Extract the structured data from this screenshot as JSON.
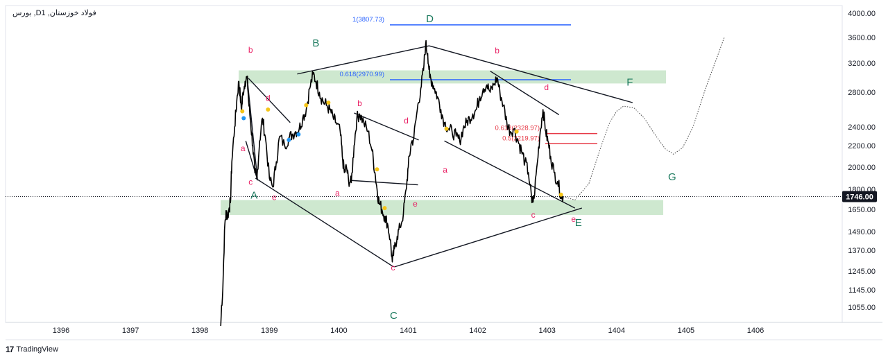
{
  "symbol": {
    "title": "بورس ,Dفولاد خوزستان, 1"
  },
  "brand": {
    "logo": "17",
    "name": "TradingView"
  },
  "price_tag": {
    "value": "1746.00"
  },
  "chart_data": {
    "type": "line",
    "series": [
      {
        "values": [
          [
            1398.3,
            1000
          ],
          [
            1398.33,
            1150
          ],
          [
            1398.36,
            1550
          ],
          [
            1398.38,
            1630
          ],
          [
            1398.4,
            1600
          ],
          [
            1398.42,
            1660
          ],
          [
            1398.44,
            1700
          ],
          [
            1398.46,
            2050
          ],
          [
            1398.5,
            2400
          ],
          [
            1398.53,
            2700
          ],
          [
            1398.56,
            2950
          ],
          [
            1398.58,
            2750
          ],
          [
            1398.6,
            2600
          ],
          [
            1398.62,
            2800
          ],
          [
            1398.65,
            2950
          ],
          [
            1398.68,
            3000
          ],
          [
            1398.7,
            2700
          ],
          [
            1398.73,
            2450
          ],
          [
            1398.76,
            2200
          ],
          [
            1398.79,
            1950
          ],
          [
            1398.82,
            1900
          ],
          [
            1398.86,
            2250
          ],
          [
            1398.9,
            2500
          ],
          [
            1398.94,
            2300
          ],
          [
            1399.0,
            1900
          ],
          [
            1399.05,
            1820
          ],
          [
            1399.1,
            2050
          ],
          [
            1399.15,
            2300
          ],
          [
            1399.22,
            2200
          ],
          [
            1399.28,
            2280
          ],
          [
            1399.33,
            2320
          ],
          [
            1399.38,
            2350
          ],
          [
            1399.43,
            2380
          ],
          [
            1399.48,
            2500
          ],
          [
            1399.53,
            2600
          ],
          [
            1399.58,
            2850
          ],
          [
            1399.63,
            3050
          ],
          [
            1399.67,
            2950
          ],
          [
            1399.72,
            2800
          ],
          [
            1399.77,
            2700
          ],
          [
            1399.82,
            2650
          ],
          [
            1399.87,
            2600
          ],
          [
            1399.92,
            2500
          ],
          [
            1399.96,
            2450
          ],
          [
            1400.02,
            2350
          ],
          [
            1400.05,
            2100
          ],
          [
            1400.08,
            1950
          ],
          [
            1400.11,
            2000
          ],
          [
            1400.14,
            1880
          ],
          [
            1400.18,
            1860
          ],
          [
            1400.22,
            2200
          ],
          [
            1400.26,
            2500
          ],
          [
            1400.3,
            2550
          ],
          [
            1400.36,
            2450
          ],
          [
            1400.42,
            2350
          ],
          [
            1400.48,
            2150
          ],
          [
            1400.52,
            1950
          ],
          [
            1400.55,
            1800
          ],
          [
            1400.58,
            1700
          ],
          [
            1400.62,
            1650
          ],
          [
            1400.66,
            1600
          ],
          [
            1400.7,
            1550
          ],
          [
            1400.74,
            1440
          ],
          [
            1400.77,
            1300
          ],
          [
            1400.8,
            1380
          ],
          [
            1400.84,
            1460
          ],
          [
            1400.88,
            1520
          ],
          [
            1400.93,
            1620
          ],
          [
            1400.97,
            1800
          ],
          [
            1401.0,
            2000
          ],
          [
            1401.04,
            2220
          ],
          [
            1401.08,
            2280
          ],
          [
            1401.13,
            2600
          ],
          [
            1401.18,
            2850
          ],
          [
            1401.22,
            3100
          ],
          [
            1401.25,
            3500
          ],
          [
            1401.28,
            3350
          ],
          [
            1401.31,
            3000
          ],
          [
            1401.34,
            2950
          ],
          [
            1401.38,
            2850
          ],
          [
            1401.42,
            2750
          ],
          [
            1401.47,
            2600
          ],
          [
            1401.52,
            2450
          ],
          [
            1401.58,
            2380
          ],
          [
            1401.63,
            2350
          ],
          [
            1401.69,
            2300
          ],
          [
            1401.74,
            2250
          ],
          [
            1401.79,
            2380
          ],
          [
            1401.84,
            2450
          ],
          [
            1401.88,
            2500
          ],
          [
            1401.93,
            2550
          ],
          [
            1401.98,
            2600
          ],
          [
            1402.03,
            2750
          ],
          [
            1402.08,
            2850
          ],
          [
            1402.13,
            2900
          ],
          [
            1402.18,
            2800
          ],
          [
            1402.23,
            2900
          ],
          [
            1402.28,
            3000
          ],
          [
            1402.32,
            2800
          ],
          [
            1402.37,
            2650
          ],
          [
            1402.42,
            2450
          ],
          [
            1402.47,
            2350
          ],
          [
            1402.52,
            2380
          ],
          [
            1402.58,
            2250
          ],
          [
            1402.63,
            2150
          ],
          [
            1402.68,
            2050
          ],
          [
            1402.73,
            1950
          ],
          [
            1402.78,
            1700
          ],
          [
            1402.81,
            1730
          ],
          [
            1402.86,
            2050
          ],
          [
            1402.9,
            2350
          ],
          [
            1402.94,
            2600
          ],
          [
            1402.98,
            2350
          ],
          [
            1403.01,
            2250
          ],
          [
            1403.05,
            2100
          ],
          [
            1403.1,
            1950
          ],
          [
            1403.15,
            1870
          ],
          [
            1403.2,
            1760
          ],
          [
            1403.23,
            1746
          ]
        ]
      }
    ],
    "projection": [
      [
        1403.23,
        1746
      ],
      [
        1403.4,
        1720
      ],
      [
        1403.6,
        1850
      ],
      [
        1403.78,
        2200
      ],
      [
        1403.9,
        2450
      ],
      [
        1404.0,
        2580
      ],
      [
        1404.1,
        2640
      ],
      [
        1404.25,
        2620
      ],
      [
        1404.4,
        2500
      ],
      [
        1404.55,
        2320
      ],
      [
        1404.7,
        2170
      ],
      [
        1404.82,
        2120
      ],
      [
        1404.95,
        2180
      ],
      [
        1405.1,
        2400
      ],
      [
        1405.28,
        2850
      ],
      [
        1405.45,
        3300
      ],
      [
        1405.55,
        3600
      ]
    ],
    "xticks": [
      "1396",
      "1397",
      "1398",
      "1399",
      "1400",
      "1401",
      "1402",
      "1403",
      "1404",
      "1405",
      "1406"
    ],
    "yticks": [
      "4000.00",
      "3600.00",
      "3200.00",
      "2800.00",
      "2400.00",
      "2200.00",
      "2000.00",
      "1800.00",
      "1650.00",
      "1490.00",
      "1370.00",
      "1245.00",
      "1145.00",
      "1055.00"
    ],
    "fib_levels": [
      {
        "label": "1(3807.73)",
        "value": 3807.73,
        "color": "#2962ff"
      },
      {
        "label": "0.618(2970.99)",
        "value": 2970.99,
        "color": "#2962ff"
      },
      {
        "label": "0.618(2328.97)",
        "value": 2328.97,
        "color": "#e63946"
      },
      {
        "label": "0.5(2219.97)",
        "value": 2219.97,
        "color": "#e63946"
      }
    ],
    "zones": [
      {
        "from": 2920,
        "to": 3100,
        "color": "#a5d6a7"
      },
      {
        "from": 1610,
        "to": 1720,
        "color": "#a5d6a7"
      }
    ],
    "wave_labels": [
      {
        "t": "A",
        "x": 1398.78,
        "y": 1730,
        "c": "#1b7a5e"
      },
      {
        "t": "B",
        "x": 1399.67,
        "y": 3460,
        "c": "#1b7a5e"
      },
      {
        "t": "C",
        "x": 1400.79,
        "y": 1020,
        "c": "#1b7a5e"
      },
      {
        "t": "D",
        "x": 1401.31,
        "y": 3850,
        "c": "#1b7a5e"
      },
      {
        "t": "E",
        "x": 1403.45,
        "y": 1530,
        "c": "#1b7a5e"
      },
      {
        "t": "F",
        "x": 1404.19,
        "y": 2890,
        "c": "#1b7a5e"
      },
      {
        "t": "G",
        "x": 1404.8,
        "y": 1880,
        "c": "#1b7a5e"
      },
      {
        "t": "b",
        "x": 1398.73,
        "y": 3360,
        "c": "#e91e63"
      },
      {
        "t": "d",
        "x": 1398.98,
        "y": 2700,
        "c": "#e91e63"
      },
      {
        "t": "a",
        "x": 1398.62,
        "y": 2150,
        "c": "#e91e63"
      },
      {
        "t": "c",
        "x": 1398.73,
        "y": 1840,
        "c": "#e91e63"
      },
      {
        "t": "e",
        "x": 1399.07,
        "y": 1720,
        "c": "#e91e63"
      },
      {
        "t": "b",
        "x": 1400.3,
        "y": 2640,
        "c": "#e91e63"
      },
      {
        "t": "d",
        "x": 1400.97,
        "y": 2440,
        "c": "#e91e63"
      },
      {
        "t": "a",
        "x": 1399.98,
        "y": 1750,
        "c": "#e91e63"
      },
      {
        "t": "c",
        "x": 1400.78,
        "y": 1250,
        "c": "#e91e63"
      },
      {
        "t": "e",
        "x": 1401.1,
        "y": 1670,
        "c": "#e91e63"
      },
      {
        "t": "b",
        "x": 1402.28,
        "y": 3350,
        "c": "#e91e63"
      },
      {
        "t": "d",
        "x": 1402.99,
        "y": 2830,
        "c": "#e91e63"
      },
      {
        "t": "a",
        "x": 1401.53,
        "y": 1950,
        "c": "#e91e63"
      },
      {
        "t": "c",
        "x": 1402.8,
        "y": 1590,
        "c": "#e91e63"
      },
      {
        "t": "e",
        "x": 1403.38,
        "y": 1560,
        "c": "#e91e63"
      }
    ],
    "trend_lines": [
      [
        [
          1398.68,
          3000
        ],
        [
          1398.83,
          1880
        ]
      ],
      [
        [
          1398.66,
          2250
        ],
        [
          1398.83,
          1880
        ]
      ],
      [
        [
          1398.7,
          2990
        ],
        [
          1399.3,
          2450
        ]
      ],
      [
        [
          1398.8,
          1900
        ],
        [
          1400.79,
          1270
        ]
      ],
      [
        [
          1400.8,
          1270
        ],
        [
          1403.5,
          1660
        ]
      ],
      [
        [
          1399.4,
          3050
        ],
        [
          1401.3,
          3470
        ]
      ],
      [
        [
          1401.3,
          3470
        ],
        [
          1404.23,
          2680
        ]
      ],
      [
        [
          1400.22,
          2560
        ],
        [
          1401.15,
          2260
        ]
      ],
      [
        [
          1400.17,
          1880
        ],
        [
          1401.14,
          1840
        ]
      ],
      [
        [
          1401.52,
          2250
        ],
        [
          1403.4,
          1660
        ]
      ],
      [
        [
          1402.18,
          3090
        ],
        [
          1403.17,
          2540
        ]
      ]
    ],
    "markers": [
      {
        "x": 1398.61,
        "y": 2580,
        "c": "#f5c518"
      },
      {
        "x": 1398.63,
        "y": 2500,
        "c": "#2196f3"
      },
      {
        "x": 1398.98,
        "y": 2600,
        "c": "#f5c518"
      },
      {
        "x": 1399.28,
        "y": 2260,
        "c": "#2196f3"
      },
      {
        "x": 1399.42,
        "y": 2320,
        "c": "#2196f3"
      },
      {
        "x": 1399.53,
        "y": 2650,
        "c": "#f5c518"
      },
      {
        "x": 1399.85,
        "y": 2680,
        "c": "#f5c518"
      },
      {
        "x": 1400.55,
        "y": 1980,
        "c": "#f5c518"
      },
      {
        "x": 1400.66,
        "y": 1660,
        "c": "#f5c518"
      },
      {
        "x": 1401.55,
        "y": 2380,
        "c": "#f5c518"
      },
      {
        "x": 1402.56,
        "y": 2350,
        "c": "#f5c518"
      },
      {
        "x": 1403.2,
        "y": 1760,
        "c": "#f5c518"
      }
    ],
    "current_price": 1746.0,
    "xlim": [
      1395.5,
      1406.7
    ]
  }
}
